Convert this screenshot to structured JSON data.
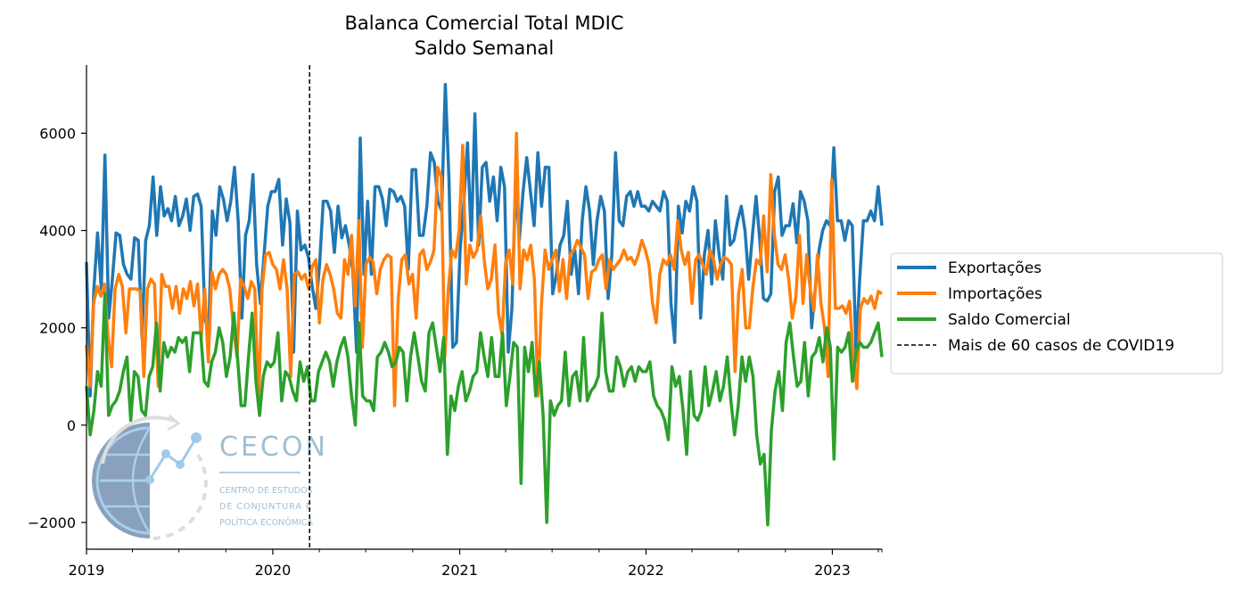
{
  "chart_data": {
    "type": "line",
    "title": "Balanca Comercial Total MDIC",
    "subtitle": "Saldo Semanal",
    "xlabel": "",
    "ylabel": "",
    "xlim": [
      "2019-01-01",
      "2023-04-08"
    ],
    "ylim": [
      -2550,
      7400
    ],
    "x_ticks": [
      "2019",
      "2020",
      "2021",
      "2022",
      "2023"
    ],
    "y_ticks": [
      -2000,
      0,
      2000,
      4000,
      6000
    ],
    "grid": false,
    "legend_position": "center-right outside plot",
    "vline": {
      "date": "2020-03-13",
      "label": "Mais de 60 casos de COVID19",
      "style": "dashed",
      "color": "#000000"
    },
    "series": [
      {
        "name": "Exportações",
        "color": "#1f77b4",
        "values": [
          3350,
          600,
          2800,
          3950,
          2800,
          5550,
          2200,
          3000,
          3950,
          3900,
          3300,
          3100,
          3000,
          3850,
          3800,
          1800,
          3800,
          4100,
          5100,
          3900,
          4900,
          4300,
          4450,
          4200,
          4700,
          4100,
          4300,
          4650,
          4000,
          4700,
          4750,
          4500,
          2200,
          1900,
          4400,
          3900,
          4900,
          4650,
          4200,
          4600,
          5300,
          4200,
          2200,
          3900,
          4200,
          5150,
          3300,
          2500,
          3500,
          4500,
          4800,
          4800,
          5050,
          3700,
          4650,
          4150,
          1500,
          4400,
          3600,
          3700,
          3450,
          2850,
          2400,
          3300,
          4600,
          4600,
          4400,
          3550,
          4500,
          3850,
          4100,
          3700,
          3200,
          1500,
          5900,
          3100,
          4600,
          3100,
          4900,
          4900,
          4650,
          4100,
          4850,
          4800,
          4600,
          4700,
          4500,
          3200,
          5250,
          5250,
          3900,
          3900,
          4500,
          5600,
          5400,
          4600,
          4400,
          7000,
          5000,
          1600,
          1700,
          3600,
          4600,
          5800,
          3800,
          6400,
          3700,
          5300,
          5400,
          4600,
          5100,
          4200,
          5300,
          4900,
          1500,
          2400,
          5000,
          3800,
          4800,
          5500,
          4800,
          4100,
          5600,
          4500,
          5300,
          5300,
          2700,
          3100,
          3700,
          3900,
          4600,
          3100,
          3600,
          2700,
          4200,
          4900,
          4400,
          3300,
          4200,
          4700,
          4400,
          2600,
          3500,
          5600,
          4200,
          4100,
          4700,
          4800,
          4500,
          4800,
          4500,
          4500,
          4400,
          4600,
          4500,
          4400,
          4800,
          4600,
          2500,
          1700,
          4500,
          3950,
          4600,
          4400,
          4900,
          4600,
          2200,
          3500,
          4000,
          2900,
          4200,
          3500,
          3000,
          4700,
          3700,
          3800,
          4200,
          4500,
          4000,
          3000,
          3900,
          4700,
          3800,
          2600,
          2550,
          2700,
          4800,
          5100,
          3900,
          4100,
          4100,
          4550,
          3750,
          4800,
          4600,
          4200,
          2000,
          2800,
          3600,
          4000,
          4200,
          4100,
          5700,
          4200,
          4200,
          3800,
          4200,
          4100,
          1500,
          3000,
          4200,
          4200,
          4400,
          4200,
          4900,
          4100
        ]
      },
      {
        "name": "Importações",
        "color": "#ff7f0e",
        "values": [
          1650,
          800,
          2500,
          2850,
          2650,
          2900,
          1850,
          1200,
          2800,
          3100,
          2850,
          1900,
          2800,
          2800,
          2800,
          2750,
          1000,
          2800,
          3000,
          2900,
          800,
          3100,
          2850,
          2850,
          2400,
          2850,
          2300,
          2800,
          2600,
          2950,
          2450,
          2900,
          1800,
          2800,
          1300,
          3150,
          2800,
          3100,
          3200,
          3100,
          2800,
          2000,
          1400,
          3000,
          2850,
          2600,
          2950,
          2800,
          400,
          2800,
          3500,
          3550,
          3300,
          3200,
          2800,
          3400,
          2800,
          1000,
          3100,
          3150,
          3000,
          3100,
          2800,
          3250,
          3400,
          2100,
          3000,
          3300,
          3100,
          2800,
          2300,
          2200,
          3400,
          3100,
          3900,
          2450,
          4200,
          1600,
          3300,
          3450,
          3350,
          2700,
          3200,
          3400,
          3500,
          3450,
          400,
          2600,
          3400,
          3500,
          2900,
          3100,
          2200,
          3500,
          3600,
          3200,
          3350,
          3600,
          5300,
          5100,
          1400,
          2800,
          3600,
          3450,
          4000,
          5750,
          2900,
          3700,
          3450,
          3600,
          4300,
          3400,
          2800,
          3000,
          3700,
          2300,
          1850,
          3350,
          3600,
          2900,
          6000,
          2800,
          3600,
          3400,
          3700,
          3000,
          600,
          2500,
          3600,
          3200,
          3400,
          3600,
          2750,
          3400,
          2600,
          3500,
          3600,
          3800,
          3650,
          3500,
          2600,
          3150,
          3200,
          3400,
          3500,
          2800,
          3400,
          3200,
          3300,
          3400,
          3600,
          3400,
          3450,
          3300,
          3500,
          3800,
          3600,
          3300,
          2500,
          2100,
          3100,
          3400,
          3300,
          3500,
          3200,
          4200,
          3600,
          3300,
          3550,
          2500,
          3400,
          3500,
          3300,
          3100,
          3600,
          3400,
          3000,
          3300,
          3450,
          3400,
          3300,
          1100,
          2700,
          3200,
          2000,
          2000,
          2850,
          3400,
          3300,
          4300,
          3150,
          5150,
          3900,
          3300,
          3200,
          3500,
          3000,
          2200,
          2650,
          3900,
          2500,
          3500,
          2800,
          2350,
          3500,
          2500,
          2000,
          1000,
          5050,
          2400,
          2400,
          2450,
          2300,
          2550,
          1400,
          750,
          2400,
          2600,
          2500,
          2650,
          2400,
          2750,
          2700
        ]
      },
      {
        "name": "Saldo Comercial",
        "color": "#2ca02c",
        "values": [
          800,
          -200,
          300,
          1100,
          800,
          2700,
          200,
          400,
          500,
          700,
          1100,
          1400,
          100,
          1100,
          1000,
          300,
          200,
          1000,
          1200,
          2100,
          700,
          1700,
          1400,
          1600,
          1500,
          1800,
          1700,
          1800,
          1100,
          1900,
          1900,
          1900,
          900,
          800,
          1300,
          1500,
          2000,
          1700,
          1000,
          1400,
          2300,
          1400,
          400,
          400,
          1400,
          2300,
          900,
          200,
          1000,
          1300,
          1200,
          1300,
          1900,
          500,
          1100,
          1000,
          700,
          500,
          1300,
          900,
          1200,
          500,
          500,
          1100,
          1300,
          1500,
          1300,
          800,
          1300,
          1600,
          1800,
          1400,
          600,
          0,
          2100,
          600,
          500,
          500,
          300,
          1400,
          1500,
          1700,
          1500,
          1200,
          1300,
          1600,
          1500,
          500,
          1400,
          1900,
          1400,
          900,
          700,
          1900,
          2100,
          1600,
          1100,
          1800,
          -600,
          600,
          300,
          800,
          1100,
          500,
          700,
          1000,
          1100,
          1900,
          1400,
          1000,
          1800,
          1000,
          1000,
          1900,
          400,
          1000,
          1700,
          1600,
          -1200,
          1600,
          1100,
          1700,
          600,
          1300,
          200,
          -2000,
          500,
          200,
          400,
          500,
          1500,
          400,
          1000,
          1100,
          500,
          1800,
          500,
          700,
          800,
          1000,
          2300,
          1100,
          700,
          700,
          1400,
          1200,
          800,
          1100,
          1200,
          900,
          1200,
          1100,
          1100,
          1300,
          600,
          400,
          300,
          100,
          -300,
          1200,
          800,
          1000,
          300,
          -600,
          1100,
          200,
          100,
          300,
          1200,
          400,
          700,
          1100,
          500,
          800,
          1400,
          500,
          -200,
          400,
          1400,
          900,
          1400,
          1000,
          -200,
          -800,
          -600,
          -2050,
          -100,
          700,
          1100,
          300,
          1700,
          2100,
          1400,
          800,
          900,
          1700,
          600,
          1400,
          1500,
          1800,
          1300,
          2000,
          1600,
          -700,
          1600,
          1500,
          1600,
          1900,
          900,
          1500,
          1700,
          1600,
          1600,
          1700,
          1900,
          2100,
          1400
        ]
      }
    ]
  },
  "logo": {
    "name": "CECON",
    "line1": "CENTRO DE ESTUDOS",
    "line2": "DE CONJUNTURA E",
    "line3": "POLÍTICA ECONÔMICA"
  }
}
